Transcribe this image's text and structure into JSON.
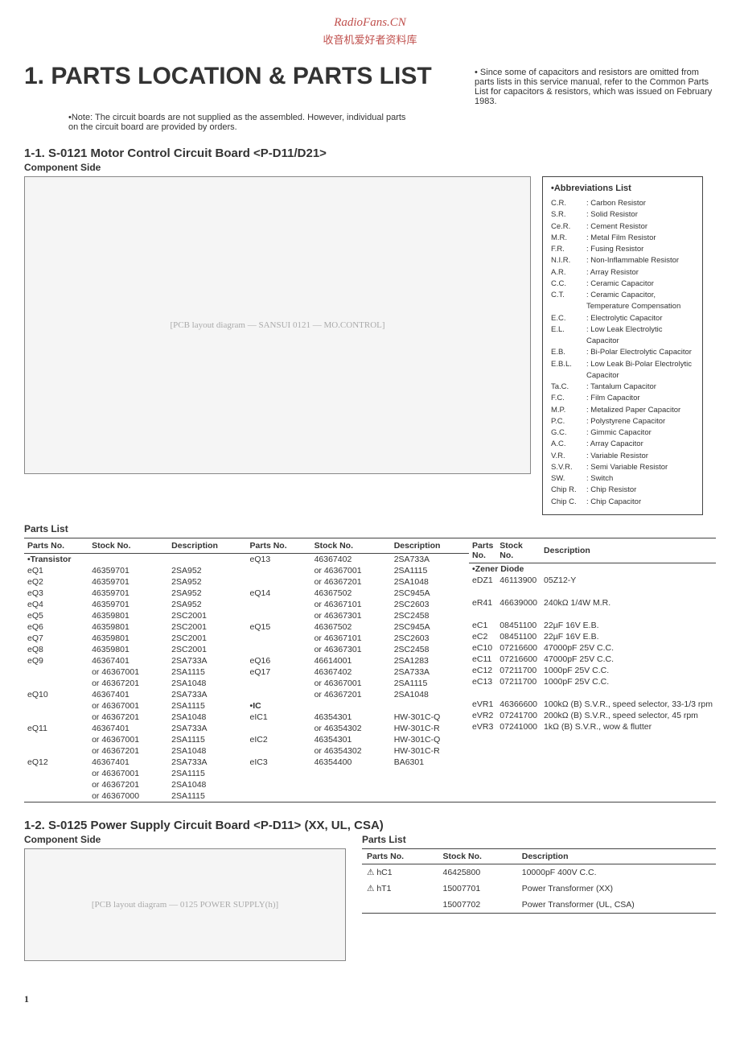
{
  "header": {
    "line1": "RadioFans.CN",
    "line2": "收音机爱好者资料库"
  },
  "title": "1.  PARTS LOCATION & PARTS LIST",
  "title_side_note": "• Since some of capacitors and resistors are omitted from parts lists in this service manual, refer to the Common Parts List for capacitors & resistors, which was issued on February 1983.",
  "sub_note": "•Note: The circuit boards are not supplied as the assembled. However, individual parts on the circuit board are provided by orders.",
  "section1": {
    "title": "1-1. S-0121 Motor Control Circuit Board  <P-D11/D21>",
    "comp_side": "Component Side",
    "pcb_label": "[PCB layout diagram — SANSUI 0121 — MO.CONTROL]"
  },
  "abbrev": {
    "title": "•Abbreviations List",
    "rows": [
      {
        "k": "C.R.",
        "v": ": Carbon Resistor"
      },
      {
        "k": "S.R.",
        "v": ": Solid Resistor"
      },
      {
        "k": "Ce.R.",
        "v": ": Cement Resistor"
      },
      {
        "k": "M.R.",
        "v": ": Metal Film Resistor"
      },
      {
        "k": "F.R.",
        "v": ": Fusing Resistor"
      },
      {
        "k": "N.I.R.",
        "v": ": Non-Inflammable Resistor"
      },
      {
        "k": "A.R.",
        "v": ": Array Resistor"
      },
      {
        "k": "C.C.",
        "v": ": Ceramic Capacitor"
      },
      {
        "k": "C.T.",
        "v": ": Ceramic Capacitor, Temperature Compensation"
      },
      {
        "k": "E.C.",
        "v": ": Electrolytic Capacitor"
      },
      {
        "k": "E.L.",
        "v": ": Low Leak Electrolytic Capacitor"
      },
      {
        "k": "E.B.",
        "v": ": Bi-Polar Electrolytic Capacitor"
      },
      {
        "k": "E.B.L.",
        "v": ": Low Leak Bi-Polar Electrolytic Capacitor"
      },
      {
        "k": "Ta.C.",
        "v": ": Tantalum Capacitor"
      },
      {
        "k": "F.C.",
        "v": ": Film Capacitor"
      },
      {
        "k": "M.P.",
        "v": ": Metalized Paper Capacitor"
      },
      {
        "k": "P.C.",
        "v": ": Polystyrene Capacitor"
      },
      {
        "k": "G.C.",
        "v": ": Gimmic Capacitor"
      },
      {
        "k": "A.C.",
        "v": ": Array Capacitor"
      },
      {
        "k": "V.R.",
        "v": ": Variable Resistor"
      },
      {
        "k": "S.V.R.",
        "v": ": Semi Variable Resistor"
      },
      {
        "k": "SW.",
        "v": ": Switch"
      },
      {
        "k": "Chip R.",
        "v": ": Chip Resistor"
      },
      {
        "k": "Chip C.",
        "v": ": Chip Capacitor"
      }
    ]
  },
  "parts_list_hdr": "Parts List",
  "parts_headers": [
    "Parts No.",
    "Stock No.",
    "Description"
  ],
  "col1": {
    "category": "•Transistor",
    "rows": [
      [
        "eQ1",
        "46359701",
        "2SA952"
      ],
      [
        "eQ2",
        "46359701",
        "2SA952"
      ],
      [
        "eQ3",
        "46359701",
        "2SA952"
      ],
      [
        "eQ4",
        "46359701",
        "2SA952"
      ],
      [
        "eQ5",
        "46359801",
        "2SC2001"
      ],
      [
        "eQ6",
        "46359801",
        "2SC2001"
      ],
      [
        "eQ7",
        "46359801",
        "2SC2001"
      ],
      [
        "eQ8",
        "46359801",
        "2SC2001"
      ],
      [
        "eQ9",
        "46367401",
        "2SA733A"
      ],
      [
        "",
        "or 46367001",
        "2SA1115"
      ],
      [
        "",
        "or 46367201",
        "2SA1048"
      ],
      [
        "eQ10",
        "46367401",
        "2SA733A"
      ],
      [
        "",
        "or 46367001",
        "2SA1115"
      ],
      [
        "",
        "or 46367201",
        "2SA1048"
      ],
      [
        "eQ11",
        "46367401",
        "2SA733A"
      ],
      [
        "",
        "or 46367001",
        "2SA1115"
      ],
      [
        "",
        "or 46367201",
        "2SA1048"
      ],
      [
        "eQ12",
        "46367401",
        "2SA733A"
      ],
      [
        "",
        "or 46367001",
        "2SA1115"
      ],
      [
        "",
        "or 46367201",
        "2SA1048"
      ],
      [
        "",
        "or 46367000",
        "2SA1115"
      ]
    ]
  },
  "col2": {
    "rows1": [
      [
        "eQ13",
        "46367402",
        "2SA733A"
      ],
      [
        "",
        "or 46367001",
        "2SA1115"
      ],
      [
        "",
        "or 46367201",
        "2SA1048"
      ],
      [
        "eQ14",
        "46367502",
        "2SC945A"
      ],
      [
        "",
        "or 46367101",
        "2SC2603"
      ],
      [
        "",
        "or 46367301",
        "2SC2458"
      ],
      [
        "eQ15",
        "46367502",
        "2SC945A"
      ],
      [
        "",
        "or 46367101",
        "2SC2603"
      ],
      [
        "",
        "or 46367301",
        "2SC2458"
      ],
      [
        "eQ16",
        "46614001",
        "2SA1283"
      ],
      [
        "eQ17",
        "46367402",
        "2SA733A"
      ],
      [
        "",
        "or 46367001",
        "2SA1115"
      ],
      [
        "",
        "or 46367201",
        "2SA1048"
      ]
    ],
    "category2": "•IC",
    "rows2": [
      [
        "eIC1",
        "46354301",
        "HW-301C-Q"
      ],
      [
        "",
        "or 46354302",
        "HW-301C-R"
      ],
      [
        "eIC2",
        "46354301",
        "HW-301C-Q"
      ],
      [
        "",
        "or 46354302",
        "HW-301C-R"
      ],
      [
        "eIC3",
        "46354400",
        "BA6301"
      ]
    ]
  },
  "col3": {
    "category1": "•Zener Diode",
    "rows1": [
      [
        "eDZ1",
        "46113900",
        "05Z12-Y"
      ]
    ],
    "rows2": [
      [
        "eR41",
        "46639000",
        "240kΩ 1/4W M.R."
      ]
    ],
    "rows3": [
      [
        "eC1",
        "08451100",
        "22µF 16V E.B."
      ],
      [
        "eC2",
        "08451100",
        "22µF 16V E.B."
      ],
      [
        "eC10",
        "07216600",
        "47000pF 25V C.C."
      ],
      [
        "eC11",
        "07216600",
        "47000pF 25V C.C."
      ],
      [
        "eC12",
        "07211700",
        "1000pF 25V C.C."
      ],
      [
        "eC13",
        "07211700",
        "1000pF 25V C.C."
      ]
    ],
    "rows4": [
      [
        "eVR1",
        "46366600",
        "100kΩ (B) S.V.R., speed selector, 33-1/3 rpm"
      ],
      [
        "eVR2",
        "07241700",
        "200kΩ (B) S.V.R., speed selector, 45 rpm"
      ],
      [
        "eVR3",
        "07241000",
        "1kΩ (B) S.V.R., wow & flutter"
      ]
    ]
  },
  "section2": {
    "title": "1-2. S-0125 Power Supply Circuit Board  <P-D11> (XX, UL, CSA)",
    "comp_side": "Component Side",
    "pcb_label": "[PCB layout diagram — 0125 POWER SUPPLY(h)]",
    "parts_list_hdr": "Parts List",
    "rows": [
      [
        "⚠ hC1",
        "46425800",
        "10000pF 400V C.C."
      ],
      [
        "⚠ hT1",
        "15007701",
        "Power Transformer (XX)"
      ],
      [
        "",
        "15007702",
        "Power Transformer (UL, CSA)"
      ]
    ]
  },
  "page_number": "1"
}
